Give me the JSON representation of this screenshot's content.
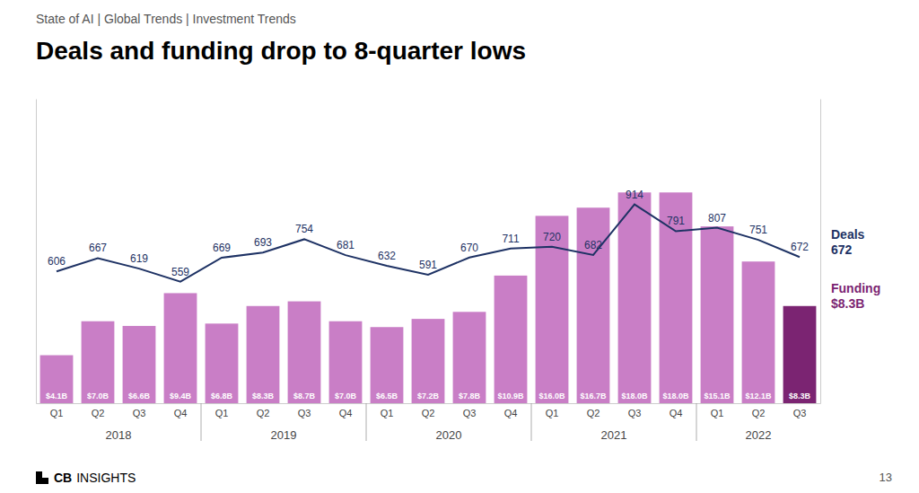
{
  "chart_data": {
    "type": "bar",
    "title": "Deals and funding drop to 8-quarter lows",
    "subtitle": "State of AI  |  Global Trends  |  Investment Trends",
    "categories": [
      "Q1",
      "Q2",
      "Q3",
      "Q4",
      "Q1",
      "Q2",
      "Q3",
      "Q4",
      "Q1",
      "Q2",
      "Q3",
      "Q4",
      "Q1",
      "Q2",
      "Q3",
      "Q4",
      "Q1",
      "Q2",
      "Q3"
    ],
    "annotations": [
      "2018",
      "2019",
      "2020",
      "2021",
      "2022"
    ],
    "footer": [
      "CB",
      "INSIGHTS"
    ],
    "page_number": "13",
    "series": [
      {
        "name": "Funding",
        "type": "bar",
        "color": "#7b2472",
        "colors": [
          "#c97ec6",
          "#c97ec6",
          "#c97ec6",
          "#c97ec6",
          "#c97ec6",
          "#c97ec6",
          "#c97ec6",
          "#c97ec6",
          "#c97ec6",
          "#c97ec6",
          "#c97ec6",
          "#c97ec6",
          "#c97ec6",
          "#c97ec6",
          "#c97ec6",
          "#c97ec6",
          "#c97ec6",
          "#c97ec6",
          "#7b2472"
        ],
        "values": [
          4.1,
          7.0,
          6.6,
          9.4,
          6.8,
          8.3,
          8.7,
          7.0,
          6.5,
          7.2,
          7.8,
          10.9,
          16.0,
          16.7,
          18.0,
          18.0,
          15.1,
          12.1,
          8.3
        ],
        "value_labels": [
          "$4.1B",
          "$7.0B",
          "$6.6B",
          "$9.4B",
          "$6.8B",
          "$8.3B",
          "$8.7B",
          "$7.0B",
          "$6.5B",
          "$7.2B",
          "$7.8B",
          "$10.9B",
          "$16.0B",
          "$16.7B",
          "$18.0B",
          "$18.0B",
          "$15.1B",
          "$12.1B",
          "$8.3B"
        ]
      },
      {
        "name": "Deals",
        "type": "line",
        "color": "#1e3264",
        "axis": "y2",
        "values": [
          606,
          667,
          619,
          559,
          669,
          693,
          754,
          681,
          632,
          591,
          670,
          711,
          720,
          682,
          914,
          791,
          807,
          751,
          672
        ]
      }
    ],
    "ylim": [
      0,
      26
    ],
    "y2lim": [
      0,
      1400
    ],
    "tick_labels": "x",
    "data_labels": true,
    "legend": "right",
    "grid": false
  }
}
